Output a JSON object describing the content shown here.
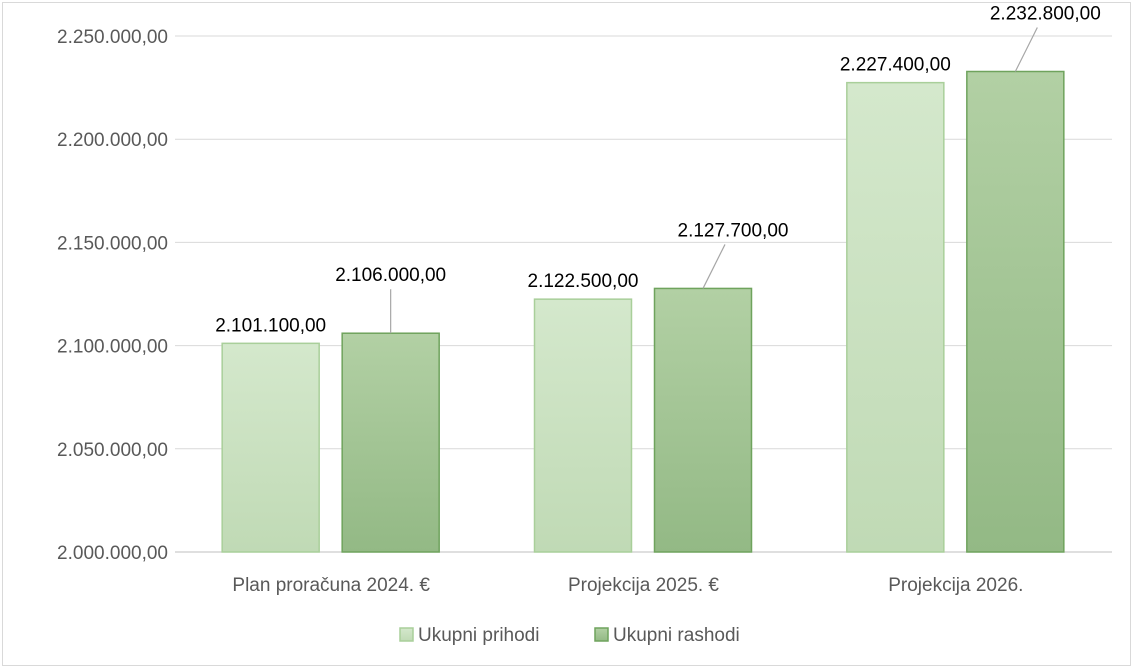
{
  "chart_data": {
    "type": "bar",
    "categories": [
      "Plan proračuna 2024. €",
      "Projekcija 2025. €",
      "Projekcija 2026."
    ],
    "series": [
      {
        "name": "Ukupni prihodi",
        "values": [
          2101100,
          2122500,
          2227400
        ],
        "labels": [
          "2.101.100,00",
          "2.122.500,00",
          "2.227.400,00"
        ],
        "color": "#c9e0c0"
      },
      {
        "name": "Ukupni rashodi",
        "values": [
          2106000,
          2127700,
          2232800
        ],
        "labels": [
          "2.106.000,00",
          "2.127.700,00",
          "2.232.800,00"
        ],
        "color": "#a3c592"
      }
    ],
    "ylim": [
      2000000,
      2250000
    ],
    "yticks": [
      2000000,
      2050000,
      2100000,
      2150000,
      2200000,
      2250000
    ],
    "ytick_labels": [
      "2.000.000,00",
      "2.050.000,00",
      "2.100.000,00",
      "2.150.000,00",
      "2.200.000,00",
      "2.250.000,00"
    ],
    "grid": true,
    "legend": "bottom",
    "title": "",
    "xlabel": "",
    "ylabel": ""
  }
}
